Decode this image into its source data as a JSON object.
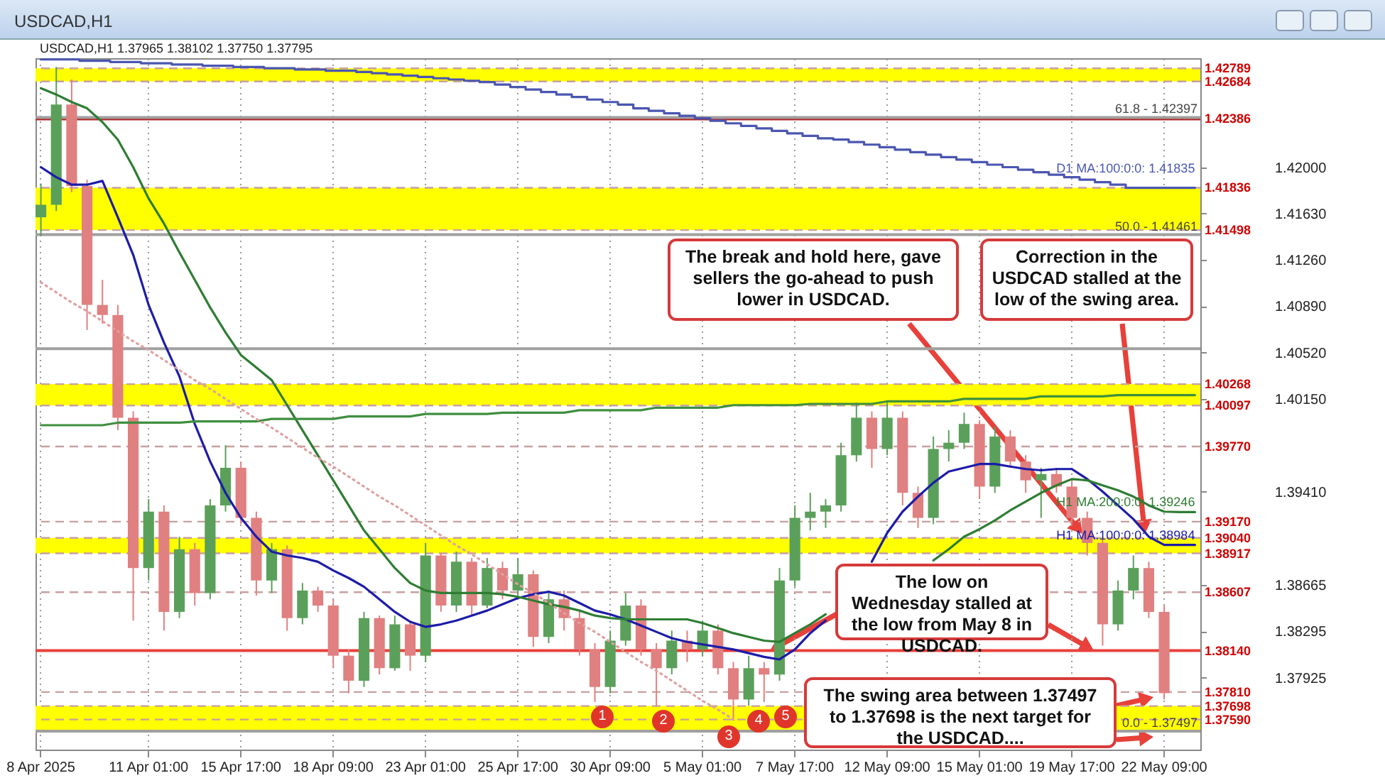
{
  "chart_data": {
    "type": "candlestick",
    "title": "USDCAD,H1",
    "subtitle": "USDCAD,H1  1.37965 1.38102 1.37750 1.37795",
    "categories": [
      "8 Apr 2025",
      null,
      null,
      null,
      null,
      null,
      null,
      "11 Apr 01:00",
      null,
      null,
      null,
      null,
      null,
      "15 Apr 17:00",
      null,
      null,
      null,
      null,
      null,
      "18 Apr 09:00",
      null,
      null,
      null,
      null,
      null,
      "23 Apr 01:00",
      null,
      null,
      null,
      null,
      null,
      "25 Apr 17:00",
      null,
      null,
      null,
      null,
      null,
      "30 Apr 09:00",
      null,
      null,
      null,
      null,
      null,
      "5 May 01:00",
      null,
      null,
      null,
      null,
      null,
      "7 May 17:00",
      null,
      null,
      null,
      null,
      null,
      "12 May 09:00",
      null,
      null,
      null,
      null,
      null,
      "15 May 01:00",
      null,
      null,
      null,
      null,
      null,
      "19 May 17:00",
      null,
      null,
      null,
      null,
      null,
      "22 May 09:00",
      null,
      null
    ],
    "ohlc": [
      [
        1.416,
        1.4187,
        1.4145,
        1.417
      ],
      [
        1.417,
        1.428,
        1.4165,
        1.425
      ],
      [
        1.425,
        1.427,
        1.418,
        1.4185
      ],
      [
        1.4185,
        1.419,
        1.407,
        1.409
      ],
      [
        1.409,
        1.411,
        1.4075,
        1.4082
      ],
      [
        1.4082,
        1.409,
        1.399,
        1.4
      ],
      [
        1.4,
        1.4005,
        1.3838,
        1.388
      ],
      [
        1.388,
        1.3935,
        1.387,
        1.3925
      ],
      [
        1.3925,
        1.393,
        1.383,
        1.3845
      ],
      [
        1.3845,
        1.3905,
        1.384,
        1.3895
      ],
      [
        1.3895,
        1.39,
        1.385,
        1.386
      ],
      [
        1.386,
        1.3935,
        1.3855,
        1.393
      ],
      [
        1.393,
        1.3978,
        1.3925,
        1.396
      ],
      [
        1.396,
        1.3965,
        1.3915,
        1.392
      ],
      [
        1.392,
        1.3925,
        1.3858,
        1.387
      ],
      [
        1.387,
        1.39,
        1.386,
        1.3895
      ],
      [
        1.3895,
        1.3898,
        1.383,
        1.384
      ],
      [
        1.384,
        1.3868,
        1.3835,
        1.3862
      ],
      [
        1.3862,
        1.3865,
        1.3845,
        1.385
      ],
      [
        1.385,
        1.3855,
        1.38,
        1.381
      ],
      [
        1.381,
        1.3815,
        1.378,
        1.379
      ],
      [
        1.379,
        1.3845,
        1.3785,
        1.384
      ],
      [
        1.384,
        1.3842,
        1.3795,
        1.38
      ],
      [
        1.38,
        1.3842,
        1.3798,
        1.3835
      ],
      [
        1.3835,
        1.3838,
        1.3798,
        1.381
      ],
      [
        1.381,
        1.39,
        1.3805,
        1.389
      ],
      [
        1.389,
        1.3892,
        1.3845,
        1.385
      ],
      [
        1.385,
        1.3893,
        1.3845,
        1.3885
      ],
      [
        1.3885,
        1.3888,
        1.3842,
        1.385
      ],
      [
        1.385,
        1.3888,
        1.3848,
        1.388
      ],
      [
        1.388,
        1.3885,
        1.3855,
        1.3862
      ],
      [
        1.3862,
        1.3888,
        1.3858,
        1.3875
      ],
      [
        1.3875,
        1.3878,
        1.3817,
        1.3825
      ],
      [
        1.3825,
        1.386,
        1.382,
        1.3855
      ],
      [
        1.3855,
        1.3862,
        1.383,
        1.384
      ],
      [
        1.384,
        1.3845,
        1.381,
        1.3815
      ],
      [
        1.3815,
        1.382,
        1.3773,
        1.3785
      ],
      [
        1.3785,
        1.383,
        1.378,
        1.3822
      ],
      [
        1.3822,
        1.386,
        1.3818,
        1.385
      ],
      [
        1.385,
        1.3855,
        1.381,
        1.3815
      ],
      [
        1.3815,
        1.382,
        1.377,
        1.38
      ],
      [
        1.38,
        1.383,
        1.3795,
        1.3822
      ],
      [
        1.3822,
        1.383,
        1.3805,
        1.3815
      ],
      [
        1.3815,
        1.3838,
        1.381,
        1.383
      ],
      [
        1.383,
        1.3835,
        1.3795,
        1.38
      ],
      [
        1.38,
        1.3805,
        1.3758,
        1.3775
      ],
      [
        1.3775,
        1.381,
        1.377,
        1.38
      ],
      [
        1.38,
        1.3805,
        1.3773,
        1.3795
      ],
      [
        1.3795,
        1.388,
        1.379,
        1.387
      ],
      [
        1.387,
        1.393,
        1.3865,
        1.392
      ],
      [
        1.392,
        1.394,
        1.391,
        1.3925
      ],
      [
        1.3925,
        1.3935,
        1.3912,
        1.393
      ],
      [
        1.393,
        1.398,
        1.3925,
        1.397
      ],
      [
        1.397,
        1.4012,
        1.3965,
        1.4
      ],
      [
        1.4,
        1.4005,
        1.396,
        1.3975
      ],
      [
        1.3975,
        1.4012,
        1.397,
        1.4
      ],
      [
        1.4,
        1.4005,
        1.393,
        1.394
      ],
      [
        1.394,
        1.3945,
        1.3912,
        1.392
      ],
      [
        1.392,
        1.3985,
        1.3915,
        1.3975
      ],
      [
        1.3975,
        1.399,
        1.3965,
        1.398
      ],
      [
        1.398,
        1.4004,
        1.3975,
        1.3995
      ],
      [
        1.3995,
        1.3998,
        1.3935,
        1.3945
      ],
      [
        1.3945,
        1.3993,
        1.394,
        1.3985
      ],
      [
        1.3985,
        1.399,
        1.396,
        1.3965
      ],
      [
        1.3965,
        1.397,
        1.394,
        1.395
      ],
      [
        1.395,
        1.396,
        1.392,
        1.3955
      ],
      [
        1.3955,
        1.396,
        1.394,
        1.3945
      ],
      [
        1.3945,
        1.395,
        1.3915,
        1.392
      ],
      [
        1.392,
        1.3925,
        1.389,
        1.39
      ],
      [
        1.39,
        1.3905,
        1.3818,
        1.3835
      ],
      [
        1.3835,
        1.387,
        1.383,
        1.3862
      ],
      [
        1.3862,
        1.389,
        1.3855,
        1.388
      ],
      [
        1.388,
        1.3885,
        1.384,
        1.3845
      ],
      [
        1.3845,
        1.385,
        1.3775,
        1.378
      ],
      null,
      null
    ],
    "series": [
      {
        "name": "H1 MA:100:0:0: 1.38984",
        "color": "#1c1ca8",
        "type": "line",
        "values": [
          1.42,
          1.4192,
          1.4186,
          1.4186,
          1.4189,
          1.416,
          1.413,
          1.409,
          1.406,
          1.4033,
          1.3995,
          1.3965,
          1.394,
          1.392,
          1.3905,
          1.3893,
          1.389,
          1.3888,
          1.3885,
          1.3878,
          1.3872,
          1.3865,
          1.3855,
          1.3845,
          1.3837,
          1.3833,
          1.3835,
          1.3838,
          1.3842,
          1.3846,
          1.3851,
          1.3856,
          1.3859,
          1.3861,
          1.3858,
          1.3852,
          1.3846,
          1.3843,
          1.3839,
          1.3834,
          1.3829,
          1.3824,
          1.3821,
          1.3819,
          1.3817,
          1.3815,
          1.3812,
          1.3809,
          1.3807,
          1.3815,
          1.3828,
          1.3838,
          null,
          null,
          1.3885,
          1.3908,
          1.3925,
          1.3937,
          1.3948,
          1.3957,
          1.396,
          1.3963,
          1.3963,
          1.3961,
          1.3959,
          1.3958,
          1.3959,
          1.3959,
          1.3951,
          1.3941,
          1.393,
          1.3919,
          1.3905,
          1.38984,
          1.38984,
          1.38984
        ]
      },
      {
        "name": "H1 MA:200:0:0: 1.39246",
        "color": "#2e7d32",
        "type": "line",
        "values": [
          1.4263,
          1.4258,
          1.4252,
          1.4247,
          1.4236,
          1.4222,
          1.42,
          1.4175,
          1.4155,
          1.4132,
          1.411,
          1.4088,
          1.4068,
          1.405,
          1.404,
          1.403,
          1.401,
          1.399,
          1.397,
          1.395,
          1.393,
          1.391,
          1.3895,
          1.388,
          1.3868,
          1.3862,
          1.386,
          1.386,
          1.386,
          1.386,
          1.3859,
          1.3857,
          1.3854,
          1.3851,
          1.3849,
          1.3846,
          1.3842,
          1.384,
          1.3839,
          1.3839,
          1.3839,
          1.3839,
          1.3839,
          1.3836,
          1.3832,
          1.3828,
          1.3825,
          1.3822,
          1.3821,
          1.3828,
          1.3835,
          1.3843,
          null,
          null,
          null,
          null,
          null,
          null,
          1.3886,
          1.3895,
          1.3905,
          1.3911,
          1.3918,
          1.3926,
          1.3933,
          1.394,
          1.3946,
          1.3951,
          1.395,
          1.3946,
          1.3942,
          1.3937,
          1.393,
          1.3925,
          1.39246,
          1.39246
        ]
      },
      {
        "name": "D1 MA:100:0:0: 1.41835",
        "color": "#4a56b0",
        "type": "step",
        "values": [
          1.4286,
          1.4286,
          1.4286,
          1.4285,
          1.4285,
          1.4284,
          1.4284,
          1.4283,
          1.4283,
          1.4282,
          1.4282,
          1.4281,
          1.4281,
          1.428,
          1.428,
          1.4279,
          1.4279,
          1.4278,
          1.4278,
          1.4277,
          1.4277,
          1.4276,
          1.4275,
          1.4274,
          1.4273,
          1.4272,
          1.4271,
          1.427,
          1.4269,
          1.4268,
          1.4266,
          1.4264,
          1.4262,
          1.426,
          1.4258,
          1.4256,
          1.4254,
          1.4252,
          1.425,
          1.4247,
          1.4245,
          1.4243,
          1.4241,
          1.4239,
          1.4237,
          1.4235,
          1.4233,
          1.4231,
          1.4229,
          1.4227,
          1.4225,
          1.4223,
          1.4222,
          1.422,
          1.4218,
          1.4216,
          1.4214,
          1.4212,
          1.421,
          1.4208,
          1.4206,
          1.4204,
          1.4202,
          1.42,
          1.4198,
          1.4196,
          1.4194,
          1.4192,
          1.419,
          1.4188,
          1.4186,
          1.41835,
          1.41835,
          1.41835,
          1.41835,
          1.41835
        ]
      },
      {
        "color": "#3f8f3f",
        "type": "line",
        "values": [
          1.3994,
          1.3994,
          1.3994,
          1.3994,
          1.3994,
          1.3996,
          1.3996,
          1.3996,
          1.3996,
          1.3996,
          1.3997,
          1.3997,
          1.3997,
          1.3997,
          1.3997,
          1.3999,
          1.3999,
          1.3999,
          1.3999,
          1.3999,
          1.4001,
          1.4001,
          1.4001,
          1.4001,
          1.4001,
          1.4003,
          1.4003,
          1.4003,
          1.4003,
          1.4003,
          1.4004,
          1.4004,
          1.4004,
          1.4004,
          1.4004,
          1.4006,
          1.4006,
          1.4006,
          1.4006,
          1.4006,
          1.4008,
          1.4008,
          1.4008,
          1.4008,
          1.4008,
          1.401,
          1.401,
          1.401,
          1.401,
          1.401,
          1.4011,
          1.4011,
          1.4011,
          1.4011,
          1.4011,
          1.4013,
          1.4013,
          1.4013,
          1.4013,
          1.4013,
          1.4015,
          1.4015,
          1.4015,
          1.4015,
          1.4015,
          1.4017,
          1.4017,
          1.4017,
          1.4017,
          1.4017,
          1.4018,
          1.4018,
          1.4018,
          1.4018,
          1.4018,
          1.4018
        ]
      },
      {
        "color": "#e0a0a0",
        "type": "line",
        "line_style": "dotted",
        "values": [
          1.4108,
          1.41,
          1.4092,
          1.4085,
          1.4077,
          1.4069,
          1.4061,
          1.4054,
          1.4046,
          1.4038,
          1.403,
          1.4023,
          1.4015,
          1.4007,
          1.3999,
          1.3992,
          1.3984,
          1.3976,
          1.3968,
          1.3961,
          1.3953,
          1.3945,
          1.3937,
          1.393,
          1.3922,
          1.3914,
          1.3906,
          1.3898,
          1.3891,
          1.3883,
          1.3875,
          1.3867,
          1.386,
          1.3852,
          1.3844,
          1.3836,
          1.3829,
          1.3821,
          1.3813,
          1.3805,
          1.3798,
          1.379,
          1.3782,
          1.3774,
          1.3767,
          1.3759,
          null,
          null,
          null,
          null,
          null,
          null,
          null,
          null,
          null,
          null,
          null,
          null,
          null,
          null,
          null,
          null,
          null,
          null,
          null,
          null,
          null,
          null,
          null,
          null,
          null,
          null,
          null,
          null,
          null,
          null
        ]
      }
    ],
    "ylim": [
      1.3735,
      1.4287
    ],
    "yticks": [
      {
        "value": 1.42,
        "label": "1.42000"
      },
      {
        "value": 1.4163,
        "label": "1.41630"
      },
      {
        "value": 1.4126,
        "label": "1.41260"
      },
      {
        "value": 1.4089,
        "label": "1.40890"
      },
      {
        "value": 1.4052,
        "label": "1.40520"
      },
      {
        "value": 1.4015,
        "label": "1.40150"
      },
      {
        "value": 1.3941,
        "label": "1.39410"
      },
      {
        "value": 1.38665,
        "label": "1.38665"
      },
      {
        "value": 1.38295,
        "label": "1.38295"
      },
      {
        "value": 1.37925,
        "label": "1.37925"
      }
    ],
    "grid": "x",
    "bands": [
      {
        "axis": "y",
        "from": 1.42684,
        "to": 1.42789,
        "color": "#ffff00"
      },
      {
        "axis": "y",
        "from": 1.41498,
        "to": 1.41836,
        "color": "#ffff00"
      },
      {
        "axis": "y",
        "from": 1.40097,
        "to": 1.40268,
        "color": "#ffff00"
      },
      {
        "axis": "y",
        "from": 1.38917,
        "to": 1.3904,
        "color": "#ffff00"
      },
      {
        "axis": "y",
        "from": 1.37497,
        "to": 1.37698,
        "color": "#ffff00"
      }
    ],
    "ref_lines": [
      {
        "axis": "y",
        "value": 1.42789,
        "label": "1.42789",
        "color": "#c8a0a0",
        "line_style": "dashed"
      },
      {
        "axis": "y",
        "value": 1.42684,
        "label": "1.42684",
        "color": "#c8a0a0",
        "line_style": "dashed"
      },
      {
        "axis": "y",
        "value": 1.42386,
        "label": "1.42386",
        "color": "#b22222",
        "line_style": "solid"
      },
      {
        "axis": "y",
        "value": 1.41836,
        "label": "1.41836",
        "color": "#c8a0a0",
        "line_style": "dashed"
      },
      {
        "axis": "y",
        "value": 1.41498,
        "label": "1.41498",
        "color": "#c8a0a0",
        "line_style": "dashed"
      },
      {
        "axis": "y",
        "value": 1.40268,
        "label": "1.40268",
        "color": "#c8a0a0",
        "line_style": "dashed"
      },
      {
        "axis": "y",
        "value": 1.40097,
        "label": "1.40097",
        "color": "#c8a0a0",
        "line_style": "dashed"
      },
      {
        "axis": "y",
        "value": 1.3977,
        "label": "1.39770",
        "color": "#c8a0a0",
        "line_style": "dashed"
      },
      {
        "axis": "y",
        "value": 1.3917,
        "label": "1.39170",
        "color": "#c8a0a0",
        "line_style": "dashed"
      },
      {
        "axis": "y",
        "value": 1.3904,
        "label": "1.39040",
        "color": "#c8a0a0",
        "line_style": "dashed"
      },
      {
        "axis": "y",
        "value": 1.38917,
        "label": "1.38917",
        "color": "#c8a0a0",
        "line_style": "dashed"
      },
      {
        "axis": "y",
        "value": 1.38607,
        "label": "1.38607",
        "color": "#c8a0a0",
        "line_style": "dashed"
      },
      {
        "axis": "y",
        "value": 1.3814,
        "label": "1.38140",
        "color": "#e8403a",
        "line_style": "solid"
      },
      {
        "axis": "y",
        "value": 1.3781,
        "label": "1.37810",
        "color": "#c8a0a0",
        "line_style": "dashed"
      },
      {
        "axis": "y",
        "value": 1.37698,
        "label": "1.37698",
        "color": "#c8a0a0",
        "line_style": "dashed"
      },
      {
        "axis": "y",
        "value": 1.3759,
        "label": "1.37590",
        "color": "#c8a0a0",
        "line_style": "dashed"
      },
      {
        "axis": "y",
        "value": 1.42397,
        "color": "#a0a0a0",
        "line_style": "solid"
      },
      {
        "axis": "y",
        "value": 1.41461,
        "color": "#a0a0a0",
        "line_style": "solid"
      },
      {
        "axis": "y",
        "value": 1.4055,
        "color": "#a0a0a0",
        "line_style": "solid"
      },
      {
        "axis": "y",
        "value": 1.37497,
        "color": "#a0a0a0",
        "line_style": "solid"
      }
    ],
    "annotations": [
      "The break and hold here, gave sellers the go-ahead to push lower in USDCAD.",
      "Correction in the USDCAD stalled at the low of the swing area.",
      {
        "text": "The low on Wednesday stalled at the low from May 8 in USDCAD.",
        "y": 1.3814
      },
      "The swing area between 1.37497 to 1.37698 is the next target for the USDCAD....",
      {
        "text": "1",
        "y": 1.3773
      },
      {
        "text": "2",
        "y": 1.377
      },
      {
        "text": "3",
        "y": 1.3758
      },
      {
        "text": "4",
        "y": 1.377
      },
      {
        "text": "5",
        "y": 1.3773
      },
      {
        "text": "61.8 - 1.42397",
        "y": 1.42397
      },
      {
        "text": "50.0 - 1.41461",
        "y": 1.41461
      },
      {
        "text": "0.0 - 1.37497",
        "y": 1.37497
      }
    ]
  }
}
